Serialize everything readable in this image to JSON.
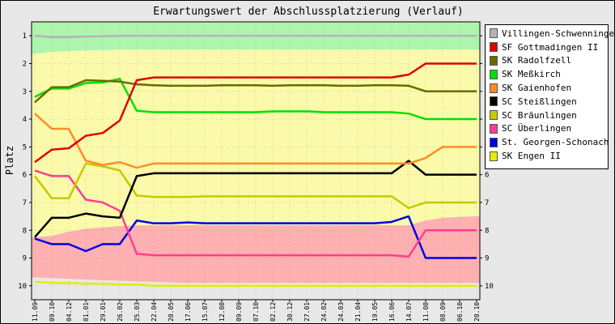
{
  "chart_data": {
    "type": "line",
    "title": "Erwartungswert der Abschlussplatzierung (Verlauf)",
    "ylabel": "Platz",
    "xlabel": "",
    "ylim": [
      10.5,
      0.5
    ],
    "y_ticks": [
      "1",
      "2",
      "3",
      "4",
      "5",
      "6",
      "7",
      "8",
      "9",
      "10"
    ],
    "grid": true,
    "legend_position": "right",
    "x": [
      "11.09",
      "09.10",
      "04.12",
      "01.01",
      "29.01",
      "26.02",
      "25.03",
      "22.04",
      "20.05",
      "17.06",
      "15.07",
      "12.08",
      "09.09",
      "07.10",
      "02.12",
      "30.12",
      "27.01",
      "24.02",
      "24.03",
      "21.04",
      "19.05",
      "16.06",
      "14.07",
      "11.08",
      "08.09",
      "06.10",
      "20.10"
    ],
    "bands": [
      {
        "color": "#aef5ae",
        "top": [
          0.5,
          0.5,
          0.5,
          0.5,
          0.5,
          0.5,
          0.5,
          0.5,
          0.5,
          0.5,
          0.5,
          0.5,
          0.5,
          0.5,
          0.5,
          0.5,
          0.5,
          0.5,
          0.5,
          0.5,
          0.5,
          0.5,
          0.5,
          0.5,
          0.5,
          0.5,
          0.5
        ],
        "bottom": [
          1.65,
          1.58,
          1.55,
          1.53,
          1.52,
          1.5,
          1.5,
          1.5,
          1.5,
          1.5,
          1.5,
          1.5,
          1.5,
          1.5,
          1.5,
          1.5,
          1.5,
          1.5,
          1.5,
          1.5,
          1.5,
          1.5,
          1.5,
          1.5,
          1.5,
          1.5,
          1.5
        ]
      },
      {
        "color": "#fafaaa",
        "top": [
          1.65,
          1.58,
          1.55,
          1.53,
          1.52,
          1.5,
          1.5,
          1.5,
          1.5,
          1.5,
          1.5,
          1.5,
          1.5,
          1.5,
          1.5,
          1.5,
          1.5,
          1.5,
          1.5,
          1.5,
          1.5,
          1.5,
          1.5,
          1.5,
          1.5,
          1.5,
          1.5
        ],
        "bottom": [
          8.25,
          8.2,
          8.05,
          7.95,
          7.9,
          7.85,
          7.83,
          7.82,
          7.82,
          7.82,
          7.82,
          7.82,
          7.82,
          7.82,
          7.82,
          7.82,
          7.82,
          7.82,
          7.82,
          7.82,
          7.82,
          7.82,
          7.82,
          7.65,
          7.55,
          7.52,
          7.5
        ]
      },
      {
        "color": "#ffb0b0",
        "top": [
          8.25,
          8.2,
          8.05,
          7.95,
          7.9,
          7.85,
          7.83,
          7.82,
          7.82,
          7.82,
          7.82,
          7.82,
          7.82,
          7.82,
          7.82,
          7.82,
          7.82,
          7.82,
          7.82,
          7.82,
          7.82,
          7.82,
          7.82,
          7.65,
          7.55,
          7.52,
          7.5
        ],
        "bottom": [
          9.7,
          9.72,
          9.75,
          9.78,
          9.8,
          9.82,
          9.84,
          9.86,
          9.88,
          9.9,
          9.9,
          9.9,
          9.9,
          9.9,
          9.9,
          9.9,
          9.9,
          9.9,
          9.9,
          9.9,
          9.9,
          9.9,
          9.9,
          9.9,
          9.9,
          9.9,
          9.9
        ]
      },
      {
        "color": "#e8e8e8",
        "top": [
          9.7,
          9.72,
          9.75,
          9.78,
          9.8,
          9.82,
          9.84,
          9.86,
          9.88,
          9.9,
          9.9,
          9.9,
          9.9,
          9.9,
          9.9,
          9.9,
          9.9,
          9.9,
          9.9,
          9.9,
          9.9,
          9.9,
          9.9,
          9.9,
          9.9,
          9.9,
          9.9
        ],
        "bottom": [
          10.5,
          10.5,
          10.5,
          10.5,
          10.5,
          10.5,
          10.5,
          10.5,
          10.5,
          10.5,
          10.5,
          10.5,
          10.5,
          10.5,
          10.5,
          10.5,
          10.5,
          10.5,
          10.5,
          10.5,
          10.5,
          10.5,
          10.5,
          10.5,
          10.5,
          10.5,
          10.5
        ]
      }
    ],
    "series": [
      {
        "name": "Villingen-Schwenningen",
        "color": "#b4b4b4",
        "values": [
          1.0,
          1.05,
          1.05,
          1.03,
          1.02,
          1.0,
          1.0,
          1.0,
          1.0,
          1.0,
          1.0,
          1.0,
          1.0,
          1.0,
          1.0,
          1.0,
          1.0,
          1.0,
          1.0,
          1.0,
          1.0,
          1.0,
          1.0,
          1.0,
          1.0,
          1.0,
          1.0
        ]
      },
      {
        "name": "SF Gottmadingen II",
        "color": "#e00000",
        "values": [
          5.55,
          5.1,
          5.05,
          4.6,
          4.5,
          4.05,
          2.6,
          2.5,
          2.5,
          2.5,
          2.5,
          2.5,
          2.5,
          2.5,
          2.5,
          2.5,
          2.5,
          2.5,
          2.5,
          2.5,
          2.5,
          2.5,
          2.4,
          2.0,
          2.0,
          2.0,
          2.0
        ]
      },
      {
        "name": "SK Radolfzell",
        "color": "#6b6b00",
        "values": [
          3.4,
          2.85,
          2.85,
          2.6,
          2.62,
          2.65,
          2.75,
          2.78,
          2.8,
          2.8,
          2.8,
          2.78,
          2.78,
          2.78,
          2.8,
          2.78,
          2.78,
          2.78,
          2.8,
          2.8,
          2.78,
          2.78,
          2.8,
          3.0,
          3.0,
          3.0,
          3.0
        ]
      },
      {
        "name": "SK Meßkirch",
        "color": "#00e000",
        "values": [
          3.2,
          2.9,
          2.9,
          2.7,
          2.68,
          2.55,
          3.7,
          3.75,
          3.75,
          3.75,
          3.75,
          3.75,
          3.75,
          3.75,
          3.72,
          3.72,
          3.72,
          3.75,
          3.75,
          3.75,
          3.75,
          3.75,
          3.8,
          4.0,
          4.0,
          4.0,
          4.0
        ]
      },
      {
        "name": "SK Gaienhofen",
        "color": "#ff8c28",
        "values": [
          3.8,
          4.35,
          4.35,
          5.5,
          5.65,
          5.55,
          5.75,
          5.6,
          5.6,
          5.6,
          5.6,
          5.6,
          5.6,
          5.6,
          5.6,
          5.6,
          5.6,
          5.6,
          5.6,
          5.6,
          5.6,
          5.6,
          5.6,
          5.4,
          5.0,
          5.0,
          5.0
        ]
      },
      {
        "name": "SC Steißlingen",
        "color": "#000000",
        "values": [
          8.25,
          7.55,
          7.55,
          7.4,
          7.5,
          7.55,
          6.05,
          5.95,
          5.95,
          5.95,
          5.95,
          5.95,
          5.95,
          5.95,
          5.95,
          5.95,
          5.95,
          5.95,
          5.95,
          5.95,
          5.95,
          5.95,
          5.5,
          6.0,
          6.0,
          6.0,
          6.0
        ]
      },
      {
        "name": "SC Bräunlingen",
        "color": "#c8c800",
        "values": [
          6.05,
          6.85,
          6.85,
          5.6,
          5.7,
          5.85,
          6.75,
          6.8,
          6.8,
          6.8,
          6.78,
          6.78,
          6.78,
          6.78,
          6.78,
          6.78,
          6.78,
          6.78,
          6.78,
          6.78,
          6.78,
          6.78,
          7.2,
          7.0,
          7.0,
          7.0,
          7.0
        ]
      },
      {
        "name": "SC Überlingen",
        "color": "#ff3c96",
        "values": [
          5.85,
          6.05,
          6.05,
          6.9,
          7.0,
          7.3,
          8.85,
          8.9,
          8.9,
          8.9,
          8.9,
          8.9,
          8.9,
          8.9,
          8.9,
          8.9,
          8.9,
          8.9,
          8.9,
          8.9,
          8.9,
          8.9,
          8.95,
          8.0,
          8.0,
          8.0,
          8.0
        ]
      },
      {
        "name": "St. Georgen-Schonach",
        "color": "#0000e6",
        "values": [
          8.3,
          8.5,
          8.5,
          8.75,
          8.5,
          8.5,
          7.65,
          7.75,
          7.75,
          7.72,
          7.75,
          7.75,
          7.75,
          7.75,
          7.75,
          7.75,
          7.75,
          7.75,
          7.75,
          7.75,
          7.75,
          7.7,
          7.5,
          9.0,
          9.0,
          9.0,
          9.0
        ]
      },
      {
        "name": "SK Engen II",
        "color": "#e0ee00",
        "values": [
          9.85,
          9.9,
          9.9,
          9.92,
          9.92,
          9.95,
          9.95,
          10.0,
          10.0,
          10.0,
          10.0,
          10.0,
          10.0,
          10.0,
          10.0,
          10.0,
          10.0,
          10.0,
          10.0,
          10.0,
          10.0,
          10.0,
          10.0,
          10.0,
          10.0,
          10.0,
          10.0
        ]
      }
    ]
  }
}
